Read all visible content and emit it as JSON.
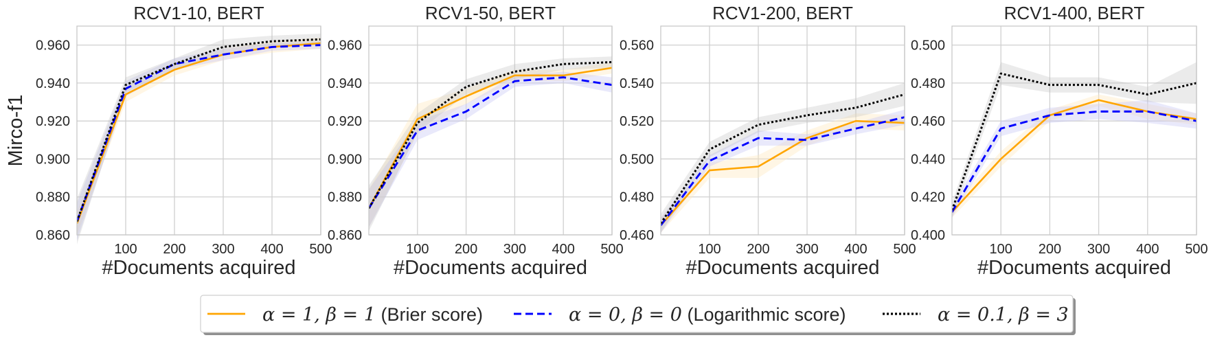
{
  "chart_data": {
    "type": "line",
    "panels": [
      {
        "title": "RCV1-10, BERT",
        "xlabel": "#Documents acquired",
        "ylabel": "Mirco-f1",
        "xlim": [
          0,
          500
        ],
        "ylim": [
          0.86,
          0.97
        ],
        "xticks": [
          "100",
          "200",
          "300",
          "400",
          "500"
        ],
        "yticks": [
          "0.860",
          "0.880",
          "0.900",
          "0.920",
          "0.940",
          "0.960"
        ],
        "x": [
          0,
          100,
          200,
          300,
          400,
          500
        ],
        "series": [
          {
            "key": "brier",
            "values": [
              0.866,
              0.934,
              0.947,
              0.955,
              0.959,
              0.961
            ],
            "band": [
              0.006,
              0.004,
              0.003,
              0.003,
              0.003,
              0.003
            ]
          },
          {
            "key": "log",
            "values": [
              0.867,
              0.937,
              0.95,
              0.955,
              0.959,
              0.96
            ],
            "band": [
              0.01,
              0.004,
              0.003,
              0.003,
              0.002,
              0.002
            ]
          },
          {
            "key": "custom",
            "values": [
              0.867,
              0.939,
              0.95,
              0.959,
              0.962,
              0.963
            ],
            "band": [
              0.012,
              0.004,
              0.003,
              0.004,
              0.003,
              0.003
            ]
          }
        ]
      },
      {
        "title": "RCV1-50, BERT",
        "xlabel": "#Documents acquired",
        "ylabel": "",
        "xlim": [
          0,
          500
        ],
        "ylim": [
          0.86,
          0.97
        ],
        "xticks": [
          "100",
          "200",
          "300",
          "400",
          "500"
        ],
        "yticks": [
          "0.860",
          "0.880",
          "0.900",
          "0.920",
          "0.940",
          "0.960"
        ],
        "x": [
          0,
          100,
          200,
          300,
          400,
          500
        ],
        "series": [
          {
            "key": "brier",
            "values": [
              0.874,
              0.921,
              0.933,
              0.944,
              0.944,
              0.948
            ],
            "band": [
              0.01,
              0.008,
              0.004,
              0.003,
              0.003,
              0.003
            ]
          },
          {
            "key": "log",
            "values": [
              0.874,
              0.915,
              0.925,
              0.941,
              0.943,
              0.939
            ],
            "band": [
              0.01,
              0.005,
              0.004,
              0.003,
              0.003,
              0.004
            ]
          },
          {
            "key": "custom",
            "values": [
              0.874,
              0.919,
              0.938,
              0.946,
              0.95,
              0.951
            ],
            "band": [
              0.012,
              0.005,
              0.004,
              0.004,
              0.003,
              0.003
            ]
          }
        ]
      },
      {
        "title": "RCV1-200, BERT",
        "xlabel": "#Documents acquired",
        "ylabel": "",
        "xlim": [
          0,
          500
        ],
        "ylim": [
          0.46,
          0.57
        ],
        "xticks": [
          "100",
          "200",
          "300",
          "400",
          "500"
        ],
        "yticks": [
          "0.460",
          "0.480",
          "0.500",
          "0.520",
          "0.540",
          "0.560"
        ],
        "x": [
          0,
          100,
          200,
          300,
          400,
          500
        ],
        "series": [
          {
            "key": "brier",
            "values": [
              0.465,
              0.494,
              0.496,
              0.511,
              0.52,
              0.519
            ],
            "band": [
              0.004,
              0.004,
              0.006,
              0.004,
              0.004,
              0.004
            ]
          },
          {
            "key": "log",
            "values": [
              0.465,
              0.499,
              0.511,
              0.51,
              0.516,
              0.522
            ],
            "band": [
              0.004,
              0.003,
              0.004,
              0.003,
              0.003,
              0.004
            ]
          },
          {
            "key": "custom",
            "values": [
              0.466,
              0.505,
              0.518,
              0.523,
              0.527,
              0.534
            ],
            "band": [
              0.005,
              0.004,
              0.004,
              0.004,
              0.005,
              0.006
            ]
          }
        ]
      },
      {
        "title": "RCV1-400, BERT",
        "xlabel": "#Documents acquired",
        "ylabel": "",
        "xlim": [
          0,
          500
        ],
        "ylim": [
          0.4,
          0.51
        ],
        "xticks": [
          "100",
          "200",
          "300",
          "400",
          "500"
        ],
        "yticks": [
          "0.400",
          "0.420",
          "0.440",
          "0.460",
          "0.480",
          "0.500"
        ],
        "x": [
          0,
          100,
          200,
          300,
          400,
          500
        ],
        "series": [
          {
            "key": "brier",
            "values": [
              0.412,
              0.44,
              0.463,
              0.471,
              0.465,
              0.461
            ],
            "band": [
              0.003,
              0.004,
              0.003,
              0.003,
              0.004,
              0.003
            ]
          },
          {
            "key": "log",
            "values": [
              0.412,
              0.456,
              0.463,
              0.465,
              0.465,
              0.46
            ],
            "band": [
              0.003,
              0.004,
              0.004,
              0.004,
              0.006,
              0.004
            ]
          },
          {
            "key": "custom",
            "values": [
              0.413,
              0.485,
              0.479,
              0.479,
              0.474,
              0.48
            ],
            "band": [
              0.004,
              0.006,
              0.004,
              0.004,
              0.004,
              0.011
            ]
          }
        ]
      }
    ],
    "legend": {
      "placement": "bottom-center",
      "entries": [
        {
          "key": "brier",
          "math": "α = 1, β = 1",
          "text": " (Brier score)",
          "color": "#ffa500",
          "dash": "solid"
        },
        {
          "key": "log",
          "math": "α = 0, β = 0",
          "text": " (Logarithmic score)",
          "color": "#0000ff",
          "dash": "dashed"
        },
        {
          "key": "custom",
          "math": "α = 0.1, β = 3",
          "text": "",
          "color": "#000000",
          "dash": "dotted"
        }
      ]
    },
    "colors": {
      "brier": "#ffa500",
      "log": "#0000ff",
      "custom": "#000000",
      "brier_band": "#ffe9bf",
      "log_band": "#c9c9f5",
      "custom_band": "#bdbdbd",
      "grid": "#d0d0d0",
      "frame": "#c8c8c8"
    },
    "grid": true
  }
}
